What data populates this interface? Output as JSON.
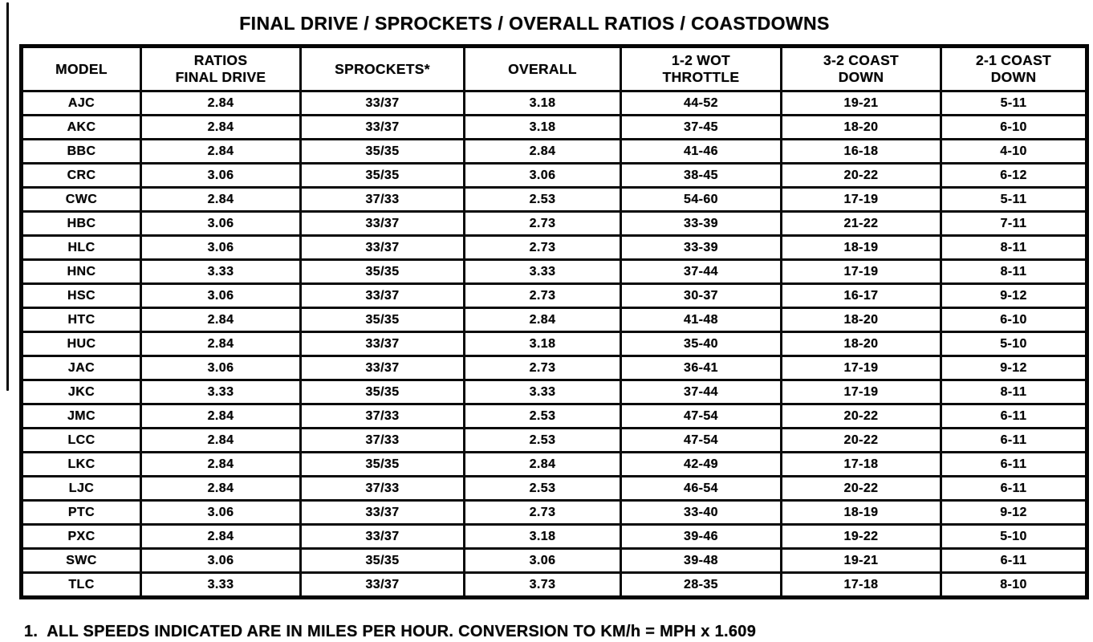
{
  "title": "FINAL DRIVE / SPROCKETS / OVERALL RATIOS / COASTDOWNS",
  "table": {
    "columns": [
      "MODEL",
      "RATIOS\nFINAL DRIVE",
      "SPROCKETS*",
      "OVERALL",
      "1-2 WOT\nTHROTTLE",
      "3-2 COAST\nDOWN",
      "2-1 COAST\nDOWN"
    ],
    "rows": [
      [
        "AJC",
        "2.84",
        "33/37",
        "3.18",
        "44-52",
        "19-21",
        "5-11"
      ],
      [
        "AKC",
        "2.84",
        "33/37",
        "3.18",
        "37-45",
        "18-20",
        "6-10"
      ],
      [
        "BBC",
        "2.84",
        "35/35",
        "2.84",
        "41-46",
        "16-18",
        "4-10"
      ],
      [
        "CRC",
        "3.06",
        "35/35",
        "3.06",
        "38-45",
        "20-22",
        "6-12"
      ],
      [
        "CWC",
        "2.84",
        "37/33",
        "2.53",
        "54-60",
        "17-19",
        "5-11"
      ],
      [
        "HBC",
        "3.06",
        "33/37",
        "2.73",
        "33-39",
        "21-22",
        "7-11"
      ],
      [
        "HLC",
        "3.06",
        "33/37",
        "2.73",
        "33-39",
        "18-19",
        "8-11"
      ],
      [
        "HNC",
        "3.33",
        "35/35",
        "3.33",
        "37-44",
        "17-19",
        "8-11"
      ],
      [
        "HSC",
        "3.06",
        "33/37",
        "2.73",
        "30-37",
        "16-17",
        "9-12"
      ],
      [
        "HTC",
        "2.84",
        "35/35",
        "2.84",
        "41-48",
        "18-20",
        "6-10"
      ],
      [
        "HUC",
        "2.84",
        "33/37",
        "3.18",
        "35-40",
        "18-20",
        "5-10"
      ],
      [
        "JAC",
        "3.06",
        "33/37",
        "2.73",
        "36-41",
        "17-19",
        "9-12"
      ],
      [
        "JKC",
        "3.33",
        "35/35",
        "3.33",
        "37-44",
        "17-19",
        "8-11"
      ],
      [
        "JMC",
        "2.84",
        "37/33",
        "2.53",
        "47-54",
        "20-22",
        "6-11"
      ],
      [
        "LCC",
        "2.84",
        "37/33",
        "2.53",
        "47-54",
        "20-22",
        "6-11"
      ],
      [
        "LKC",
        "2.84",
        "35/35",
        "2.84",
        "42-49",
        "17-18",
        "6-11"
      ],
      [
        "LJC",
        "2.84",
        "37/33",
        "2.53",
        "46-54",
        "20-22",
        "6-11"
      ],
      [
        "PTC",
        "3.06",
        "33/37",
        "2.73",
        "33-40",
        "18-19",
        "9-12"
      ],
      [
        "PXC",
        "2.84",
        "33/37",
        "3.18",
        "39-46",
        "19-22",
        "5-10"
      ],
      [
        "SWC",
        "3.06",
        "35/35",
        "3.06",
        "39-48",
        "19-21",
        "6-11"
      ],
      [
        "TLC",
        "3.33",
        "33/37",
        "3.73",
        "28-35",
        "17-18",
        "8-10"
      ]
    ]
  },
  "footnote": "1.  ALL SPEEDS INDICATED ARE IN MILES PER HOUR. CONVERSION TO KM/h = MPH x 1.609"
}
